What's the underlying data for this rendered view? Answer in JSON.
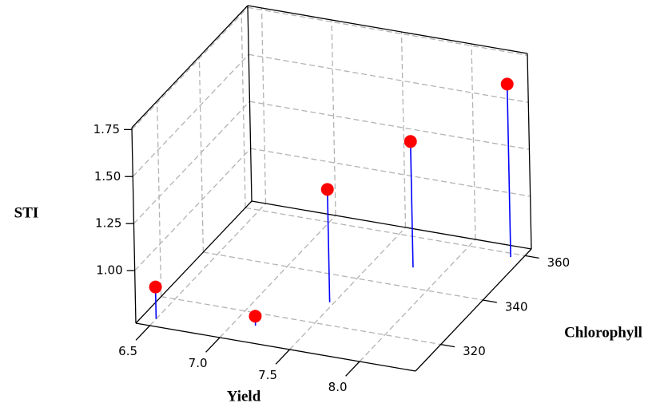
{
  "chart_data": {
    "type": "scatter3d",
    "xlabel": "Yield",
    "ylabel": "Chlorophyll",
    "zlabel": "STI",
    "x": [
      6.5,
      7.15,
      7.47,
      7.78,
      8.32
    ],
    "y": [
      311,
      315,
      329,
      348,
      358.5
    ],
    "z": [
      0.89,
      0.77,
      1.32,
      1.39,
      1.64
    ],
    "color": "#ff0000",
    "stem_color": "#0000ff",
    "xlim": [
      6.4,
      8.4
    ],
    "ylim": [
      308,
      363
    ],
    "zlim": [
      0.72,
      1.76
    ],
    "xticks": [
      6.5,
      {
        "value": 7,
        "label": "7.0"
      },
      7.5,
      {
        "value": 8,
        "label": "8.0"
      }
    ],
    "yticks": [
      320,
      340,
      360
    ],
    "zticks": [
      {
        "value": 1,
        "label": "1.00"
      },
      1.25,
      {
        "value": 1.5,
        "label": "1.50"
      },
      1.75
    ],
    "grid": true
  }
}
